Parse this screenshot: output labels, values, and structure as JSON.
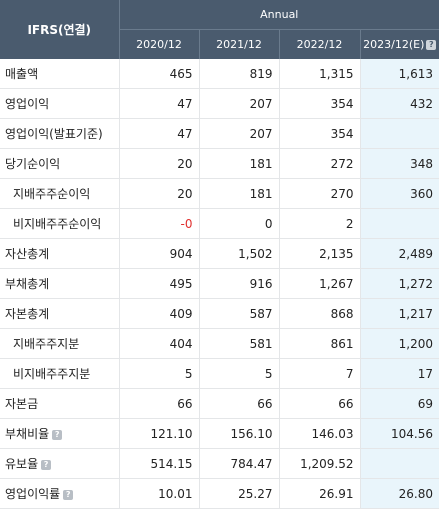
{
  "header": {
    "ifrs_label": "IFRS(연결)",
    "annual_label": "Annual",
    "years": [
      "2020/12",
      "2021/12",
      "2022/12",
      "2023/12(E)"
    ],
    "help_glyph": "?"
  },
  "rows": [
    {
      "label": "매출액",
      "sub": false,
      "help": false,
      "values": [
        "465",
        "819",
        "1,315",
        "1,613"
      ]
    },
    {
      "label": "영업이익",
      "sub": false,
      "help": false,
      "values": [
        "47",
        "207",
        "354",
        "432"
      ]
    },
    {
      "label": "영업이익(발표기준)",
      "sub": false,
      "help": false,
      "values": [
        "47",
        "207",
        "354",
        ""
      ]
    },
    {
      "label": "당기순이익",
      "sub": false,
      "help": false,
      "values": [
        "20",
        "181",
        "272",
        "348"
      ]
    },
    {
      "label": "지배주주순이익",
      "sub": true,
      "help": false,
      "values": [
        "20",
        "181",
        "270",
        "360"
      ]
    },
    {
      "label": "비지배주주순이익",
      "sub": true,
      "help": false,
      "values": [
        "-0",
        "0",
        "2",
        ""
      ]
    },
    {
      "label": "자산총계",
      "sub": false,
      "help": false,
      "values": [
        "904",
        "1,502",
        "2,135",
        "2,489"
      ]
    },
    {
      "label": "부채총계",
      "sub": false,
      "help": false,
      "values": [
        "495",
        "916",
        "1,267",
        "1,272"
      ]
    },
    {
      "label": "자본총계",
      "sub": false,
      "help": false,
      "values": [
        "409",
        "587",
        "868",
        "1,217"
      ]
    },
    {
      "label": "지배주주지분",
      "sub": true,
      "help": false,
      "values": [
        "404",
        "581",
        "861",
        "1,200"
      ]
    },
    {
      "label": "비지배주주지분",
      "sub": true,
      "help": false,
      "values": [
        "5",
        "5",
        "7",
        "17"
      ]
    },
    {
      "label": "자본금",
      "sub": false,
      "help": false,
      "values": [
        "66",
        "66",
        "66",
        "69"
      ]
    },
    {
      "label": "부채비율",
      "sub": false,
      "help": true,
      "values": [
        "121.10",
        "156.10",
        "146.03",
        "104.56"
      ]
    },
    {
      "label": "유보율",
      "sub": false,
      "help": true,
      "values": [
        "514.15",
        "784.47",
        "1,209.52",
        ""
      ]
    },
    {
      "label": "영업이익률",
      "sub": false,
      "help": true,
      "values": [
        "10.01",
        "25.27",
        "26.91",
        "26.80"
      ]
    }
  ],
  "colors": {
    "header_bg": "#4a5b6e",
    "estimate_bg": "#e9f5fb",
    "negative": "#e0302f"
  }
}
